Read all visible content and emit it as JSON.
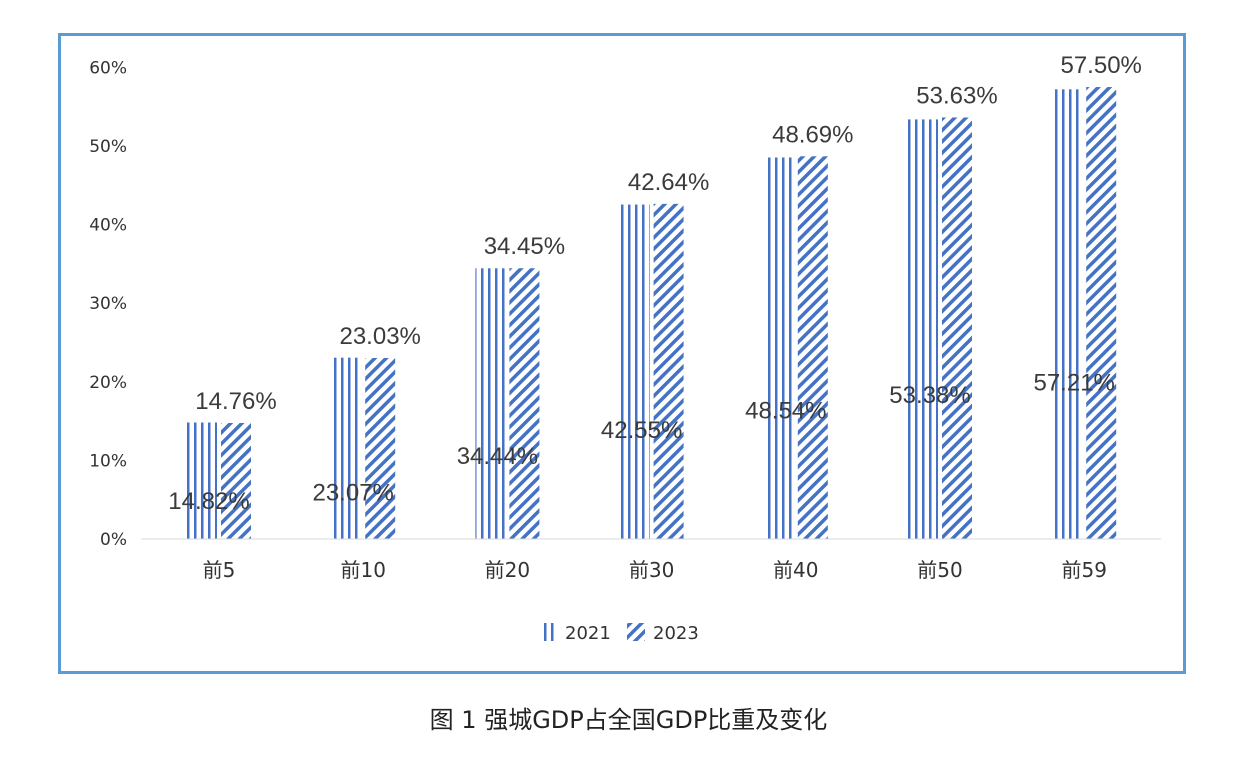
{
  "caption": "图 1 强城GDP占全国GDP比重及变化",
  "chart_data": {
    "type": "bar",
    "categories": [
      "前5",
      "前10",
      "前20",
      "前30",
      "前40",
      "前50",
      "前59"
    ],
    "series": [
      {
        "name": "2021",
        "values": [
          14.82,
          23.07,
          34.44,
          42.55,
          48.54,
          53.38,
          57.21
        ],
        "labels": [
          "14.82%",
          "23.07%",
          "34.44%",
          "42.55%",
          "48.54%",
          "53.38%",
          "57.21%"
        ],
        "pattern": "vertical-lines",
        "color": "#4472c4"
      },
      {
        "name": "2023",
        "values": [
          14.76,
          23.03,
          34.45,
          42.64,
          48.69,
          53.63,
          57.5
        ],
        "labels": [
          "14.76%",
          "23.03%",
          "34.45%",
          "42.64%",
          "48.69%",
          "53.63%",
          "57.50%"
        ],
        "pattern": "diagonal-stripes",
        "color": "#4472c4"
      }
    ],
    "yticks": [
      "0%",
      "10%",
      "20%",
      "30%",
      "40%",
      "50%",
      "60%"
    ],
    "ylim": [
      0,
      60
    ],
    "grid": false,
    "legend": "bottom-center",
    "frame_color": "#5b9bd5"
  }
}
